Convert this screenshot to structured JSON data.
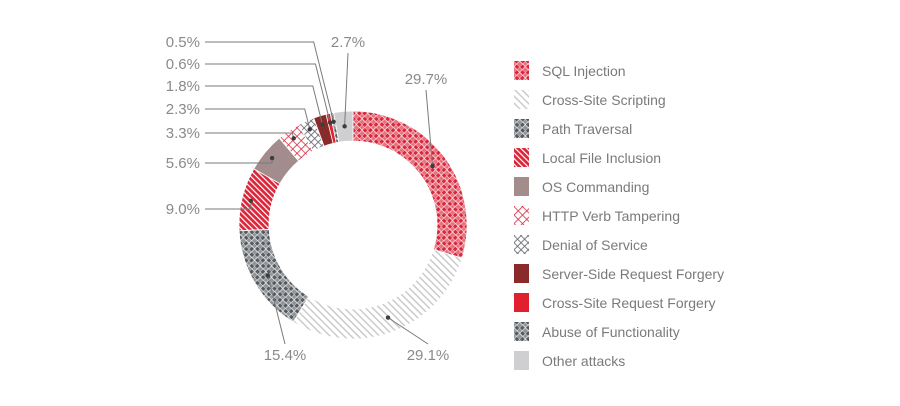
{
  "chart_data": {
    "type": "pie",
    "variant": "donut",
    "title": "",
    "slices": [
      {
        "label": "SQL Injection",
        "value": 29.7,
        "display": "29.7%",
        "color": "#d9263a",
        "pattern": "checker"
      },
      {
        "label": "Cross-Site Scripting",
        "value": 29.1,
        "display": "29.1%",
        "color": "#c8c8c8",
        "pattern": "diag"
      },
      {
        "label": "Abuse of Functionality",
        "value": 15.4,
        "display": "15.4%",
        "color": "#555a60",
        "pattern": "checker"
      },
      {
        "label": "Local File Inclusion",
        "value": 9.0,
        "display": "9.0%",
        "color": "#d9263a",
        "pattern": "diag-dense"
      },
      {
        "label": "OS Commanding",
        "value": 5.6,
        "display": "5.6%",
        "color": "#a28c8c",
        "pattern": "solid"
      },
      {
        "label": "HTTP Verb Tampering",
        "value": 3.3,
        "display": "3.3%",
        "color": "#d9263a",
        "pattern": "crosshatch"
      },
      {
        "label": "Denial of Service",
        "value": 2.3,
        "display": "2.3%",
        "color": "#6b7078",
        "pattern": "grid"
      },
      {
        "label": "Server-Side Request Forgery",
        "value": 1.8,
        "display": "1.8%",
        "color": "#8b2a2a",
        "pattern": "solid"
      },
      {
        "label": "Cross-Site Request Forgery",
        "value": 0.6,
        "display": "0.6%",
        "color": "#e0202e",
        "pattern": "solid"
      },
      {
        "label": "Path Traversal",
        "value": 0.5,
        "display": "0.5%",
        "color": "#555a60",
        "pattern": "checker"
      },
      {
        "label": "Other attacks",
        "value": 2.7,
        "display": "2.7%",
        "color": "#cfcfd2",
        "pattern": "solid"
      }
    ],
    "legend_order": [
      "SQL Injection",
      "Cross-Site Scripting",
      "Path Traversal",
      "Local File Inclusion",
      "OS Commanding",
      "HTTP Verb Tampering",
      "Denial of Service",
      "Server-Side Request Forgery",
      "Cross-Site Request Forgery",
      "Abuse of Functionality",
      "Other attacks"
    ],
    "legend_position": "right"
  }
}
